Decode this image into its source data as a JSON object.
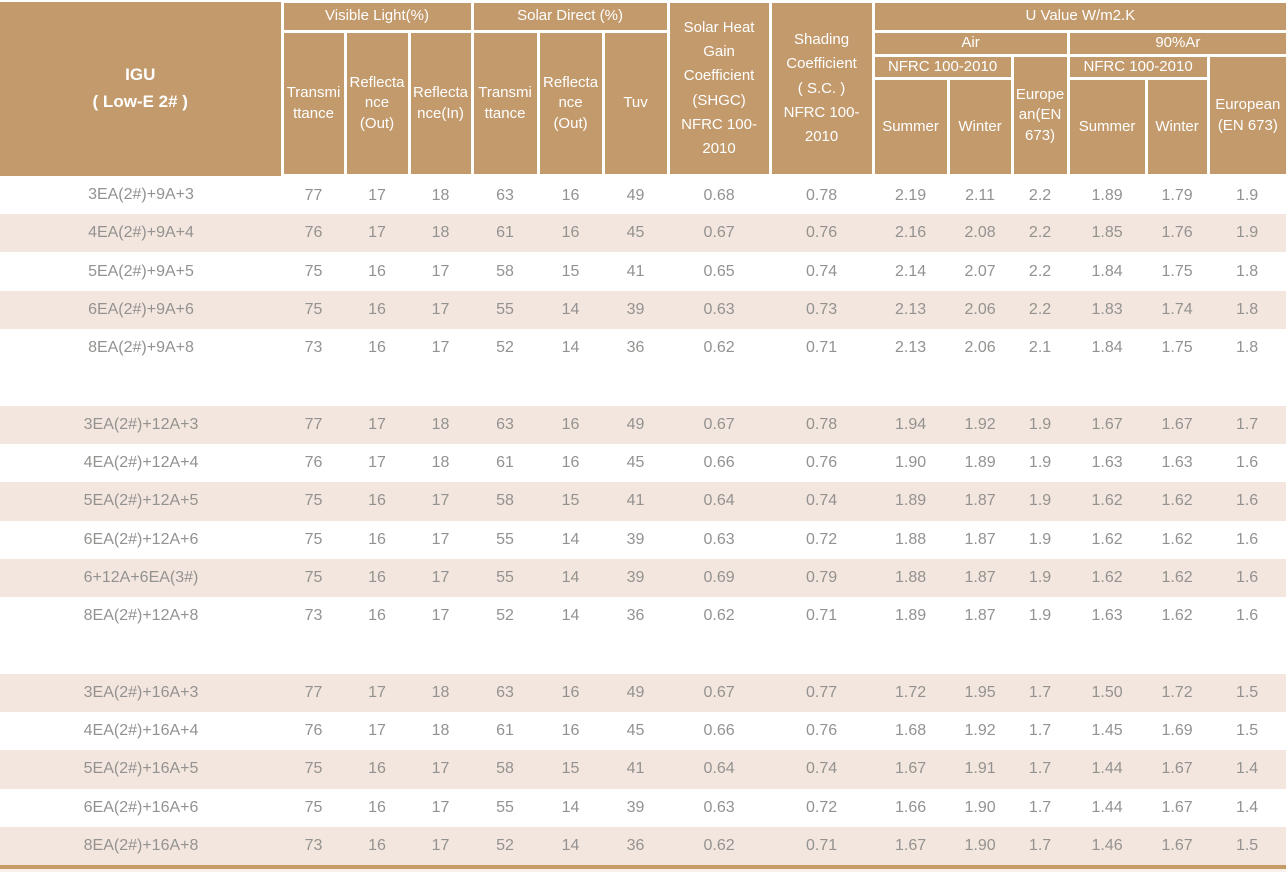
{
  "colors": {
    "header_bg": "#C39A6C",
    "stripe_bg": "#F2E6DE",
    "text_gray": "#949290",
    "header_text": "#FFFFFF",
    "grid_line": "#FFFFFF",
    "bottom_line": "#C79B66"
  },
  "table": {
    "igu_title": "IGU\n( Low-E 2# )",
    "groups": {
      "visible_light": "Visible Light(%)",
      "solar_direct": "Solar Direct (%)",
      "u_value": "U Value W/m2.K",
      "air": "Air",
      "argon": "90%Ar",
      "nfrc_air": "NFRC 100-2010",
      "nfrc_argon": "NFRC 100-2010"
    },
    "subheaders": {
      "vl_transmittance": "Transmi\nttance",
      "vl_reflectance_out": "Reflecta\nnce\n(Out)",
      "vl_reflectance_in": "Reflecta\nnce(In)",
      "sd_transmittance": "Transmi\nttance",
      "sd_reflectance_out": "Reflecta\nnce\n(Out)",
      "tuv": "Tuv",
      "shgc": "Solar Heat\nGain\nCoefficient\n(SHGC)\nNFRC 100-\n2010",
      "shading_coefficient": "Shading\nCoefficient\n( S.C. )\nNFRC 100-\n2010",
      "air_summer": "Summer",
      "air_winter": "Winter",
      "air_european": "Europe\nan(EN\n673)",
      "argon_summer": "Summer",
      "argon_winter": "Winter",
      "argon_european": "European\n(EN 673)"
    },
    "rows": [
      {
        "label": "3EA(2#)+9A+3",
        "values": [
          "77",
          "17",
          "18",
          "63",
          "16",
          "49",
          "0.68",
          "0.78",
          "2.19",
          "2.11",
          "2.2",
          "1.89",
          "1.79",
          "1.9"
        ]
      },
      {
        "label": "4EA(2#)+9A+4",
        "values": [
          "76",
          "17",
          "18",
          "61",
          "16",
          "45",
          "0.67",
          "0.76",
          "2.16",
          "2.08",
          "2.2",
          "1.85",
          "1.76",
          "1.9"
        ]
      },
      {
        "label": "5EA(2#)+9A+5",
        "values": [
          "75",
          "16",
          "17",
          "58",
          "15",
          "41",
          "0.65",
          "0.74",
          "2.14",
          "2.07",
          "2.2",
          "1.84",
          "1.75",
          "1.8"
        ]
      },
      {
        "label": "6EA(2#)+9A+6",
        "values": [
          "75",
          "16",
          "17",
          "55",
          "14",
          "39",
          "0.63",
          "0.73",
          "2.13",
          "2.06",
          "2.2",
          "1.83",
          "1.74",
          "1.8"
        ]
      },
      {
        "label": "8EA(2#)+9A+8",
        "values": [
          "73",
          "16",
          "17",
          "52",
          "14",
          "36",
          "0.62",
          "0.71",
          "2.13",
          "2.06",
          "2.1",
          "1.84",
          "1.75",
          "1.8"
        ]
      },
      {
        "spacer": true
      },
      {
        "label": "3EA(2#)+12A+3",
        "values": [
          "77",
          "17",
          "18",
          "63",
          "16",
          "49",
          "0.67",
          "0.78",
          "1.94",
          "1.92",
          "1.9",
          "1.67",
          "1.67",
          "1.7"
        ]
      },
      {
        "label": "4EA(2#)+12A+4",
        "values": [
          "76",
          "17",
          "18",
          "61",
          "16",
          "45",
          "0.66",
          "0.76",
          "1.90",
          "1.89",
          "1.9",
          "1.63",
          "1.63",
          "1.6"
        ]
      },
      {
        "label": "5EA(2#)+12A+5",
        "values": [
          "75",
          "16",
          "17",
          "58",
          "15",
          "41",
          "0.64",
          "0.74",
          "1.89",
          "1.87",
          "1.9",
          "1.62",
          "1.62",
          "1.6"
        ]
      },
      {
        "label": "6EA(2#)+12A+6",
        "values": [
          "75",
          "16",
          "17",
          "55",
          "14",
          "39",
          "0.63",
          "0.72",
          "1.88",
          "1.87",
          "1.9",
          "1.62",
          "1.62",
          "1.6"
        ]
      },
      {
        "label": "6+12A+6EA(3#)",
        "values": [
          "75",
          "16",
          "17",
          "55",
          "14",
          "39",
          "0.69",
          "0.79",
          "1.88",
          "1.87",
          "1.9",
          "1.62",
          "1.62",
          "1.6"
        ]
      },
      {
        "label": "8EA(2#)+12A+8",
        "values": [
          "73",
          "16",
          "17",
          "52",
          "14",
          "36",
          "0.62",
          "0.71",
          "1.89",
          "1.87",
          "1.9",
          "1.63",
          "1.62",
          "1.6"
        ]
      },
      {
        "spacer": true
      },
      {
        "label": "3EA(2#)+16A+3",
        "values": [
          "77",
          "17",
          "18",
          "63",
          "16",
          "49",
          "0.67",
          "0.77",
          "1.72",
          "1.95",
          "1.7",
          "1.50",
          "1.72",
          "1.5"
        ]
      },
      {
        "label": "4EA(2#)+16A+4",
        "values": [
          "76",
          "17",
          "18",
          "61",
          "16",
          "45",
          "0.66",
          "0.76",
          "1.68",
          "1.92",
          "1.7",
          "1.45",
          "1.69",
          "1.5"
        ]
      },
      {
        "label": "5EA(2#)+16A+5",
        "values": [
          "75",
          "16",
          "17",
          "58",
          "15",
          "41",
          "0.64",
          "0.74",
          "1.67",
          "1.91",
          "1.7",
          "1.44",
          "1.67",
          "1.4"
        ]
      },
      {
        "label": "6EA(2#)+16A+6",
        "values": [
          "75",
          "16",
          "17",
          "55",
          "14",
          "39",
          "0.63",
          "0.72",
          "1.66",
          "1.90",
          "1.7",
          "1.44",
          "1.67",
          "1.4"
        ]
      },
      {
        "label": "8EA(2#)+16A+8",
        "values": [
          "73",
          "16",
          "17",
          "52",
          "14",
          "36",
          "0.62",
          "0.71",
          "1.67",
          "1.90",
          "1.7",
          "1.46",
          "1.67",
          "1.5"
        ]
      }
    ]
  }
}
